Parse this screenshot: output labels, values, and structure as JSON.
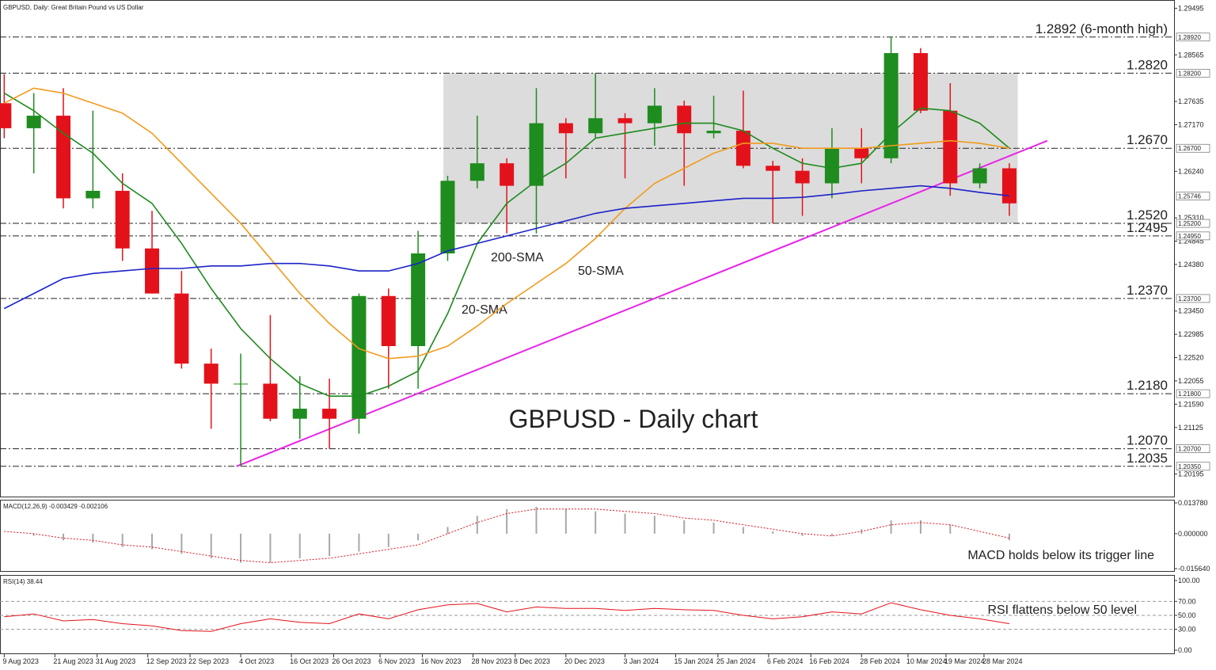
{
  "chart_data": [
    {
      "type": "candlestick",
      "title": "GBPUSD, Daily:  Great Britain Pound vs US Dollar",
      "annotation": "GBPUSD - Daily chart",
      "xlim": [
        "2023-08-08",
        "2024-05-12"
      ],
      "xticks": [
        {
          "value": "2023-08-09",
          "label": "9 Aug 2023"
        },
        {
          "value": "2023-08-21",
          "label": "21 Aug 2023"
        },
        {
          "value": "2023-08-31",
          "label": "31 Aug 2023"
        },
        {
          "value": "2023-09-12",
          "label": "12 Sep 2023"
        },
        {
          "value": "2023-09-22",
          "label": "22 Sep 2023"
        },
        {
          "value": "2023-10-04",
          "label": "4 Oct 2023"
        },
        {
          "value": "2023-10-16",
          "label": "16 Oct 2023"
        },
        {
          "value": "2023-10-26",
          "label": "26 Oct 2023"
        },
        {
          "value": "2023-11-06",
          "label": "6 Nov 2023"
        },
        {
          "value": "2023-11-16",
          "label": "16 Nov 2023"
        },
        {
          "value": "2023-11-28",
          "label": "28 Nov 2023"
        },
        {
          "value": "2023-12-08",
          "label": "8 Dec 2023"
        },
        {
          "value": "2023-12-20",
          "label": "20 Dec 2023"
        },
        {
          "value": "2024-01-03",
          "label": "3 Jan 2024"
        },
        {
          "value": "2024-01-15",
          "label": "15 Jan 2024"
        },
        {
          "value": "2024-01-25",
          "label": "25 Jan 2024"
        },
        {
          "value": "2024-02-06",
          "label": "6 Feb 2024"
        },
        {
          "value": "2024-02-16",
          "label": "16 Feb 2024"
        },
        {
          "value": "2024-02-28",
          "label": "28 Feb 2024"
        },
        {
          "value": "2024-03-10",
          "label": "10 Mar 2024"
        },
        {
          "value": "2024-03-19",
          "label": "19 Mar 2024"
        },
        {
          "value": "2024-03-28",
          "label": "28 Mar 2024"
        }
      ],
      "ylim": [
        1.1973,
        1.2966
      ],
      "yticks": [
        1.29495,
        1.28565,
        1.27635,
        {
          "value": 1.2717,
          "label": "1.27170"
        },
        {
          "value": 1.2624,
          "label": "1.26240"
        },
        {
          "value": 1.2531,
          "label": "1.25310"
        },
        1.24845,
        {
          "value": 1.2438,
          "label": "1.24380"
        },
        {
          "value": 1.2345,
          "label": "1.23450"
        },
        1.22985,
        {
          "value": 1.2252,
          "label": "1.22520"
        },
        1.22055,
        {
          "value": 1.2159,
          "label": "1.21590"
        },
        1.21125,
        1.20195
      ],
      "price_tags": [
        {
          "value": 1.2892,
          "label": "1.28920"
        },
        {
          "value": 1.282,
          "label": "1.28200"
        },
        {
          "value": 1.267,
          "label": "1.26700"
        },
        {
          "value": 1.25746,
          "label": "1.25746"
        },
        {
          "value": 1.252,
          "label": "1.25200"
        },
        {
          "value": 1.2495,
          "label": "1.24950"
        },
        {
          "value": 1.237,
          "label": "1.23700"
        },
        {
          "value": 1.218,
          "label": "1.21800"
        },
        {
          "value": 1.207,
          "label": "1.20700"
        },
        {
          "value": 1.2035,
          "label": "1.20350"
        }
      ],
      "levels": [
        {
          "value": 1.2892,
          "label": "1.2892 (6-month high)",
          "color": "#e8141c"
        },
        {
          "value": 1.282,
          "label": "1.2820",
          "color": "#e8141c"
        },
        {
          "value": 1.267,
          "label": "1.2670",
          "color": "#e8141c"
        },
        {
          "value": 1.252,
          "label": "1.2520",
          "color": "#2a8a1e"
        },
        {
          "value": 1.2495,
          "label": "1.2495",
          "color": "#2a8a1e"
        },
        {
          "value": 1.237,
          "label": "1.2370",
          "color": "#2a8a1e"
        },
        {
          "value": 1.218,
          "label": "1.2180",
          "color": "#2a8a1e"
        },
        {
          "value": 1.207,
          "label": "1.2070",
          "color": "#2a8a1e"
        },
        {
          "value": 1.2035,
          "label": "1.2035",
          "color": "#2a8a1e"
        }
      ],
      "range_box": {
        "x": [
          "2023-11-21",
          "2024-04-05"
        ],
        "y": [
          1.252,
          1.282
        ],
        "color": "#dcdcdc"
      },
      "trendline": {
        "x": [
          "2023-10-03",
          "2024-04-12"
        ],
        "y": [
          1.2035,
          1.2685
        ],
        "color": "#e626e6"
      },
      "x": [
        "2023-08-09",
        "2023-08-16",
        "2023-08-23",
        "2023-08-30",
        "2023-09-06",
        "2023-09-13",
        "2023-09-20",
        "2023-09-27",
        "2023-10-04",
        "2023-10-11",
        "2023-10-18",
        "2023-10-25",
        "2023-11-01",
        "2023-11-08",
        "2023-11-15",
        "2023-11-22",
        "2023-11-29",
        "2023-12-06",
        "2023-12-13",
        "2023-12-20",
        "2023-12-27",
        "2024-01-03",
        "2024-01-10",
        "2024-01-17",
        "2024-01-24",
        "2024-01-31",
        "2024-02-07",
        "2024-02-14",
        "2024-02-21",
        "2024-02-28",
        "2024-03-06",
        "2024-03-13",
        "2024-03-20",
        "2024-03-27",
        "2024-04-03"
      ],
      "open": [
        1.276,
        1.271,
        1.2735,
        1.257,
        1.2585,
        1.247,
        1.238,
        1.224,
        1.22,
        1.22,
        1.213,
        1.215,
        1.213,
        1.2375,
        1.2275,
        1.246,
        1.2605,
        1.264,
        1.2595,
        1.272,
        1.27,
        1.273,
        1.272,
        1.2755,
        1.27,
        1.2705,
        1.2635,
        1.2625,
        1.26,
        1.267,
        1.265,
        1.286,
        1.2745,
        1.26,
        1.263
      ],
      "high": [
        1.2818,
        1.278,
        1.279,
        1.2745,
        1.262,
        1.2545,
        1.2425,
        1.227,
        1.226,
        1.2337,
        1.2215,
        1.221,
        1.238,
        1.239,
        1.2505,
        1.2615,
        1.2735,
        1.265,
        1.279,
        1.273,
        1.282,
        1.274,
        1.279,
        1.2765,
        1.2775,
        1.2785,
        1.2645,
        1.265,
        1.271,
        1.271,
        1.2892,
        1.287,
        1.28,
        1.264,
        1.264
      ],
      "low": [
        1.269,
        1.262,
        1.255,
        1.255,
        1.2445,
        1.238,
        1.223,
        1.211,
        1.2035,
        1.2125,
        1.209,
        1.207,
        1.21,
        1.219,
        1.219,
        1.2445,
        1.259,
        1.25,
        1.25,
        1.261,
        1.269,
        1.261,
        1.2675,
        1.2595,
        1.269,
        1.263,
        1.252,
        1.2535,
        1.257,
        1.26,
        1.264,
        1.274,
        1.2575,
        1.259,
        1.2535
      ],
      "close": [
        1.271,
        1.2735,
        1.257,
        1.2585,
        1.247,
        1.238,
        1.224,
        1.22,
        1.22,
        1.213,
        1.215,
        1.213,
        1.2375,
        1.2275,
        1.246,
        1.2605,
        1.264,
        1.2595,
        1.272,
        1.27,
        1.273,
        1.272,
        1.2755,
        1.27,
        1.2705,
        1.2635,
        1.2625,
        1.26,
        1.267,
        1.265,
        1.286,
        1.2745,
        1.26,
        1.263,
        1.256
      ],
      "up_color": "#1e8c1e",
      "down_color": "#e3121a",
      "series": [
        {
          "name": "20-SMA",
          "color": "#1d8a1d",
          "values": [
            1.278,
            1.2745,
            1.27,
            1.266,
            1.26,
            1.256,
            1.248,
            1.239,
            1.231,
            1.225,
            1.22,
            1.2175,
            1.2175,
            1.2195,
            1.2225,
            1.234,
            1.248,
            1.256,
            1.2605,
            1.264,
            1.269,
            1.27,
            1.271,
            1.272,
            1.272,
            1.2705,
            1.267,
            1.264,
            1.263,
            1.264,
            1.27,
            1.275,
            1.2745,
            1.272,
            1.267
          ]
        },
        {
          "name": "50-SMA",
          "color": "#f29a1c",
          "values": [
            1.276,
            1.279,
            1.278,
            1.276,
            1.274,
            1.27,
            1.264,
            1.258,
            1.252,
            1.245,
            1.238,
            1.232,
            1.227,
            1.225,
            1.2255,
            1.2275,
            1.2315,
            1.236,
            1.24,
            1.244,
            1.249,
            1.255,
            1.26,
            1.263,
            1.266,
            1.268,
            1.268,
            1.267,
            1.267,
            1.267,
            1.2675,
            1.268,
            1.2685,
            1.268,
            1.267
          ]
        },
        {
          "name": "200-SMA",
          "color": "#1c22c8",
          "values": [
            1.235,
            1.238,
            1.241,
            1.242,
            1.2425,
            1.243,
            1.243,
            1.2435,
            1.2435,
            1.244,
            1.244,
            1.2435,
            1.2425,
            1.2425,
            1.244,
            1.2465,
            1.248,
            1.2495,
            1.251,
            1.2525,
            1.254,
            1.255,
            1.2555,
            1.256,
            1.2565,
            1.257,
            1.257,
            1.2572,
            1.2578,
            1.2585,
            1.259,
            1.2595,
            1.259,
            1.2582,
            1.2575
          ]
        }
      ]
    },
    {
      "type": "macd",
      "title": "MACD(12,26,9) -0.003429 -0.002106",
      "annotation": "MACD holds below its trigger line",
      "ylim": [
        -0.01706,
        0.01484
      ],
      "yticks": [
        {
          "value": 0.01378,
          "label": "0.013780"
        },
        {
          "value": 0,
          "label": "0.000000"
        },
        {
          "value": -0.01564,
          "label": "-0.015640"
        }
      ],
      "histogram": {
        "color": "#a8a8a8",
        "values": [
          0.0,
          -0.001,
          -0.003,
          -0.004,
          -0.006,
          -0.007,
          -0.009,
          -0.011,
          -0.013,
          -0.013,
          -0.011,
          -0.01,
          -0.008,
          -0.006,
          -0.003,
          0.003,
          0.008,
          0.011,
          0.012,
          0.011,
          0.01,
          0.009,
          0.008,
          0.006,
          0.005,
          0.003,
          0.001,
          -0.001,
          -0.001,
          0.002,
          0.006,
          0.006,
          0.004,
          0.0,
          -0.003
        ]
      },
      "signal": {
        "color": "#e3121a",
        "values": [
          0.001,
          0.0,
          -0.002,
          -0.003,
          -0.005,
          -0.006,
          -0.008,
          -0.01,
          -0.012,
          -0.013,
          -0.012,
          -0.011,
          -0.009,
          -0.007,
          -0.005,
          0.0,
          0.005,
          0.009,
          0.011,
          0.011,
          0.011,
          0.01,
          0.009,
          0.007,
          0.006,
          0.004,
          0.002,
          0.0,
          -0.001,
          0.001,
          0.004,
          0.005,
          0.004,
          0.001,
          -0.002
        ]
      }
    },
    {
      "type": "rsi",
      "title": "RSI(14) 38.44",
      "annotation": "RSI flattens  below 50 level",
      "ylim": [
        -5.7,
        106.8
      ],
      "yticks": [
        {
          "value": 100,
          "label": "100.00"
        },
        {
          "value": 70,
          "label": "70.00"
        },
        {
          "value": 50,
          "label": "50.00"
        },
        {
          "value": 30,
          "label": "30.00"
        },
        {
          "value": 0,
          "label": "0.00"
        }
      ],
      "color": "#e3121a",
      "values": [
        48,
        52,
        42,
        44,
        38,
        35,
        28,
        27,
        38,
        45,
        40,
        38,
        52,
        45,
        58,
        65,
        67,
        55,
        62,
        60,
        60,
        57,
        60,
        58,
        57,
        50,
        45,
        48,
        55,
        52,
        68,
        58,
        50,
        45,
        38
      ]
    }
  ]
}
